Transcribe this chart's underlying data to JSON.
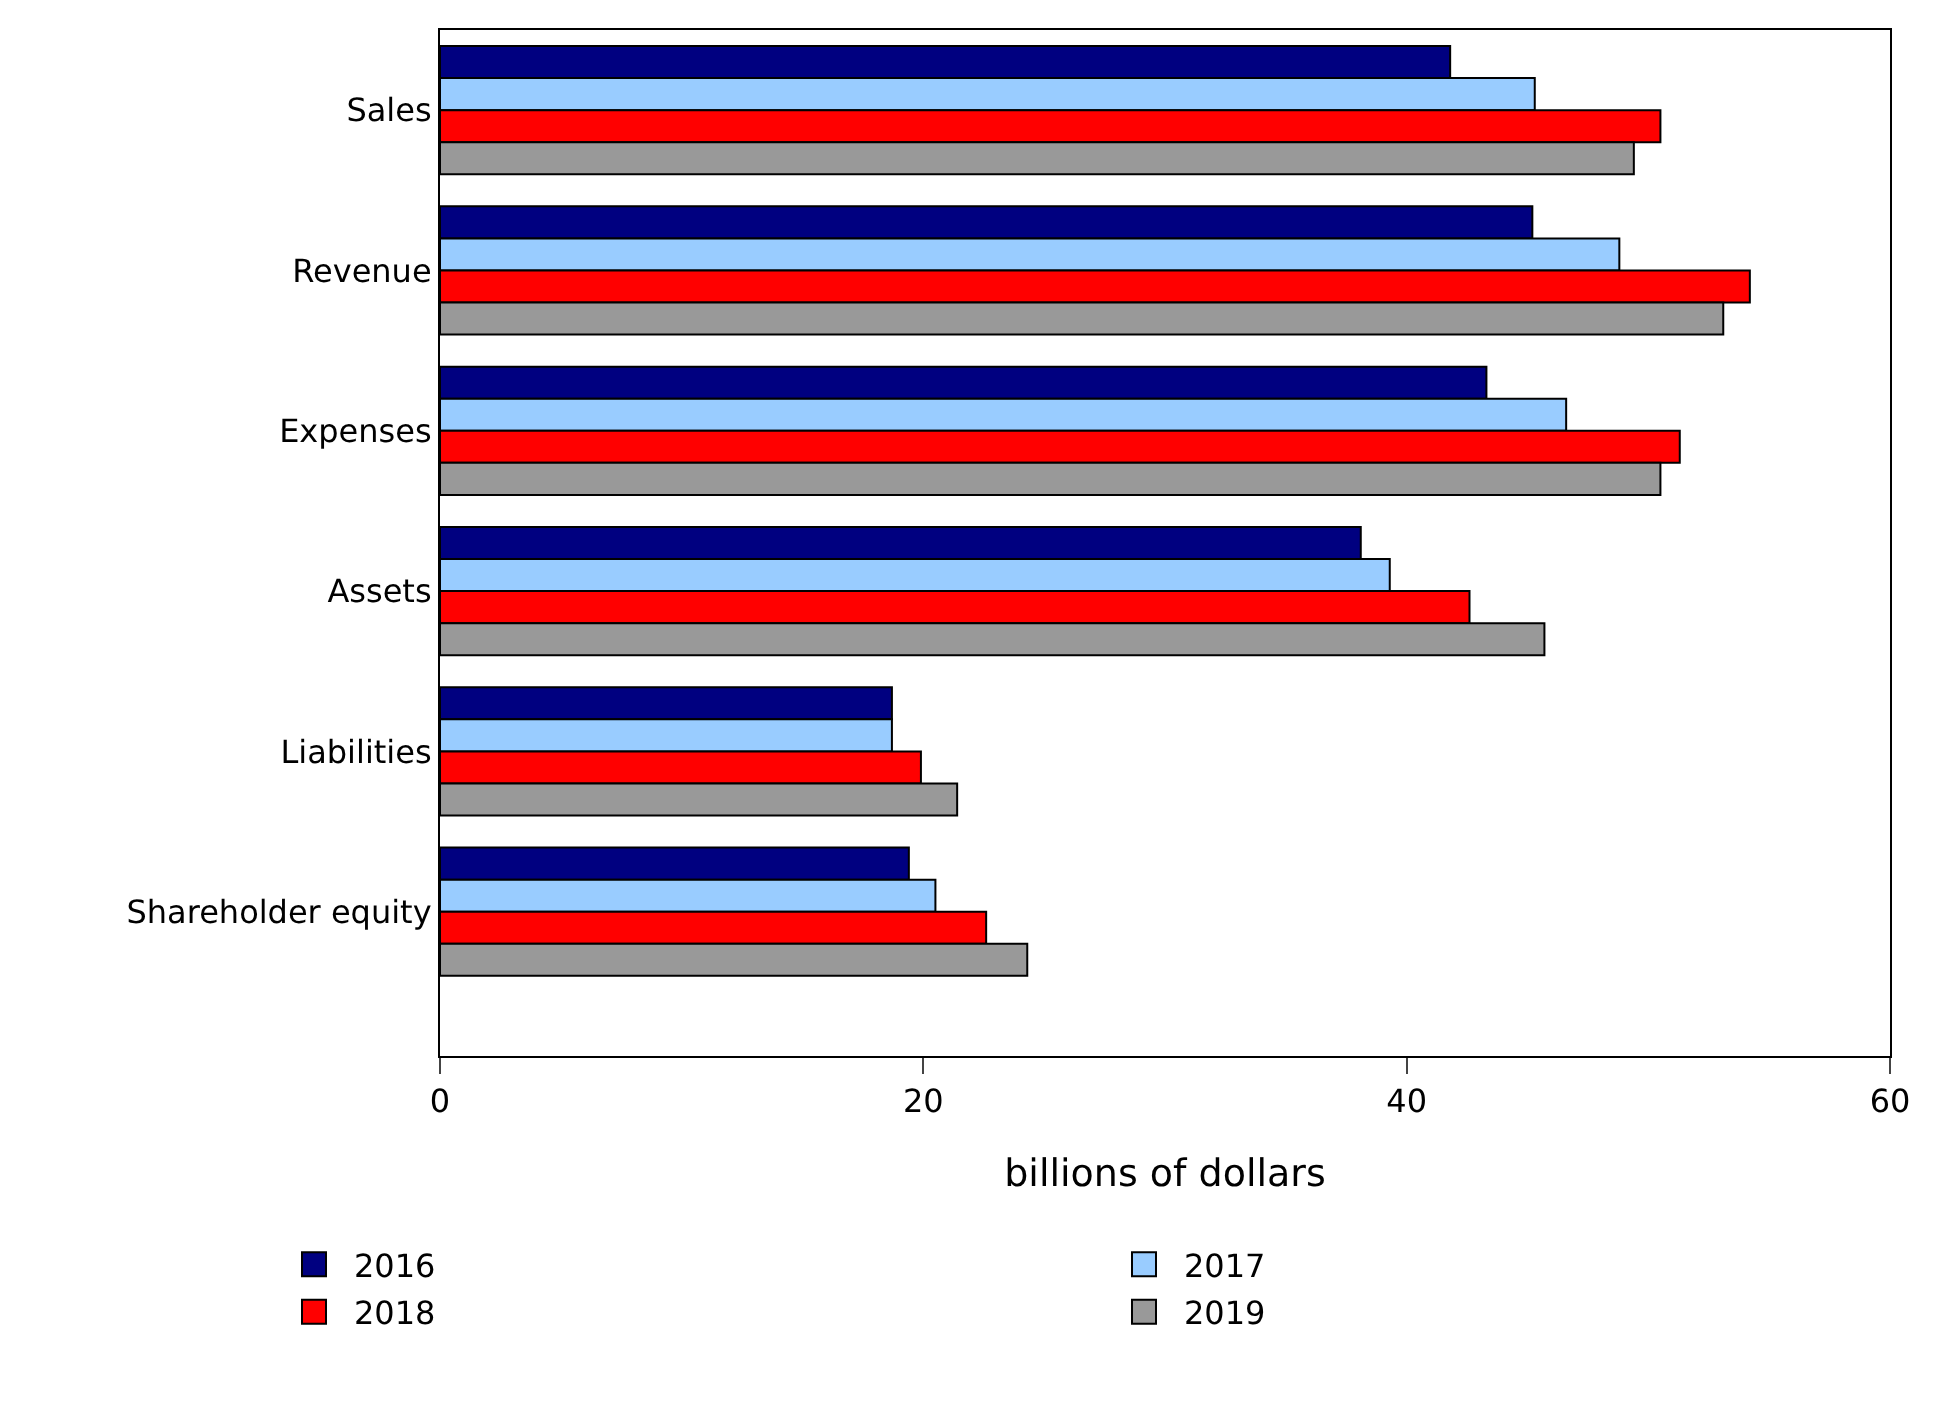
{
  "chart_data": {
    "type": "bar",
    "orientation": "horizontal",
    "xlabel": "billions of dollars",
    "categories": [
      "Sales",
      "Revenue",
      "Expenses",
      "Assets",
      "Liabilities",
      "Shareholder equity"
    ],
    "series": [
      {
        "name": "2016",
        "color": "#000080",
        "values": [
          41.8,
          45.2,
          43.3,
          38.1,
          18.7,
          19.4
        ]
      },
      {
        "name": "2017",
        "color": "#99ccff",
        "values": [
          45.3,
          48.8,
          46.6,
          39.3,
          18.7,
          20.5
        ]
      },
      {
        "name": "2018",
        "color": "#ff0000",
        "values": [
          50.5,
          54.2,
          51.3,
          42.6,
          19.9,
          22.6
        ]
      },
      {
        "name": "2019",
        "color": "#999999",
        "values": [
          49.4,
          53.1,
          50.5,
          45.7,
          21.4,
          24.3
        ]
      }
    ],
    "xlim": [
      0,
      60
    ],
    "xticks": [
      0,
      20,
      40,
      60
    ],
    "grid": false,
    "legend": "bottom"
  }
}
